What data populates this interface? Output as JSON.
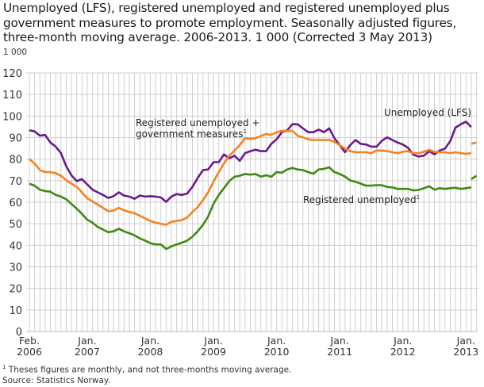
{
  "chart_data": {
    "type": "line",
    "title": "Unemployed (LFS), registered unemployed and registered unemployed plus government measures to promote employment. Seasonally adjusted figures, three-month moving average. 2006-2013. 1 000 (Corrected 3 May 2013)",
    "ylabel": "1 000",
    "xlabel": "",
    "ylim": [
      0,
      120
    ],
    "yticks": [
      "0",
      "10",
      "20",
      "30",
      "40",
      "50",
      "60",
      "70",
      "80",
      "90",
      "100",
      "110",
      "120"
    ],
    "x_start": "2006-02",
    "x_end": "2013-03",
    "xtick_labels": [
      {
        "month": "2006-02",
        "line1": "Feb.",
        "line2": "2006"
      },
      {
        "month": "2007-01",
        "line1": "Jan.",
        "line2": "2007"
      },
      {
        "month": "2008-01",
        "line1": "Jan.",
        "line2": "2008"
      },
      {
        "month": "2009-01",
        "line1": "Jan.",
        "line2": "2009"
      },
      {
        "month": "2010-01",
        "line1": "Jan.",
        "line2": "2010"
      },
      {
        "month": "2011-01",
        "line1": "Jan.",
        "line2": "2011"
      },
      {
        "month": "2012-01",
        "line1": "Jan.",
        "line2": "2012"
      },
      {
        "month": "2013-01",
        "line1": "Jan.",
        "line2": "2013"
      }
    ],
    "grid": true,
    "series": [
      {
        "name": "Unemployed (LFS)",
        "color": "#6b1a8f",
        "start": "2006-02",
        "values": [
          93.4,
          92.9,
          90.9,
          91.2,
          87.7,
          85.8,
          82.8,
          76.8,
          72.5,
          69.8,
          70.7,
          68.3,
          65.8,
          64.6,
          63.4,
          62.0,
          62.8,
          64.6,
          63.1,
          62.6,
          61.6,
          63.1,
          62.6,
          62.8,
          62.6,
          62.2,
          60.2,
          62.6,
          63.8,
          63.4,
          64.0,
          67.1,
          71.3,
          74.9,
          75.2,
          78.6,
          78.6,
          82.2,
          80.4,
          81.6,
          79.2,
          82.8,
          83.7,
          84.4,
          83.7,
          83.7,
          87.1,
          89.2,
          92.5,
          93.4,
          96.2,
          96.2,
          94.3,
          92.5,
          92.5,
          93.7,
          92.5,
          94.3,
          89.7,
          86.5,
          83.2,
          86.5,
          88.9,
          87.1,
          86.8,
          85.8,
          85.8,
          88.5,
          90.1,
          88.9,
          87.7,
          86.8,
          85.2,
          82.0,
          81.2,
          81.6,
          83.7,
          82.2,
          84.0,
          84.9,
          88.3,
          94.6,
          96.2,
          97.4,
          94.9
        ]
      },
      {
        "name": "Registered unemployed + government measures",
        "name_line1": "Registered unemployed +",
        "name_line2": "government measures",
        "footnote_mark": "1",
        "color": "#f58220",
        "start": "2006-02",
        "values": [
          80.0,
          78.0,
          74.9,
          74.0,
          74.0,
          73.5,
          72.3,
          70.3,
          68.6,
          67.1,
          64.6,
          61.8,
          60.4,
          58.9,
          57.4,
          55.8,
          56.2,
          57.4,
          56.2,
          55.5,
          54.9,
          53.7,
          52.5,
          51.3,
          50.5,
          50.0,
          49.5,
          50.9,
          51.3,
          51.7,
          52.9,
          55.5,
          57.7,
          61.0,
          64.6,
          69.5,
          74.0,
          78.0,
          81.6,
          84.0,
          86.5,
          89.7,
          89.5,
          89.7,
          90.7,
          91.7,
          91.3,
          92.5,
          93.1,
          93.1,
          93.1,
          90.9,
          90.1,
          89.2,
          88.9,
          88.9,
          88.9,
          88.9,
          88.0,
          86.5,
          84.9,
          83.7,
          83.2,
          83.2,
          83.2,
          82.8,
          84.0,
          84.0,
          83.7,
          83.2,
          82.8,
          83.4,
          83.7,
          82.8,
          82.8,
          83.4,
          84.3,
          83.4,
          83.2,
          83.2,
          82.8,
          83.2,
          82.8,
          82.5,
          82.8
        ],
        "monthly": {
          "start": "2013-02",
          "values": [
            87.1,
            87.7
          ]
        }
      },
      {
        "name": "Registered unemployed",
        "footnote_mark": "1",
        "color": "#3f8a10",
        "start": "2006-02",
        "values": [
          68.6,
          67.7,
          65.8,
          65.2,
          64.9,
          63.4,
          62.6,
          61.4,
          59.2,
          57.0,
          54.6,
          51.9,
          50.5,
          48.5,
          47.3,
          46.1,
          46.5,
          47.7,
          46.5,
          45.6,
          44.6,
          43.2,
          42.2,
          41.0,
          40.4,
          40.4,
          38.3,
          39.5,
          40.4,
          41.2,
          42.2,
          44.0,
          46.5,
          49.5,
          53.4,
          59.2,
          63.4,
          66.5,
          69.8,
          71.8,
          72.3,
          73.1,
          72.8,
          73.1,
          71.9,
          72.5,
          71.8,
          74.0,
          73.7,
          75.2,
          75.9,
          75.2,
          74.9,
          74.0,
          73.2,
          75.2,
          75.5,
          76.2,
          74.0,
          73.1,
          71.9,
          70.1,
          69.5,
          68.6,
          67.7,
          67.7,
          67.9,
          67.9,
          67.1,
          66.9,
          66.2,
          66.2,
          66.2,
          65.5,
          65.7,
          66.5,
          67.4,
          65.8,
          66.5,
          66.2,
          66.5,
          66.7,
          66.2,
          66.5,
          66.9
        ],
        "monthly": {
          "start": "2013-02",
          "values": [
            70.7,
            72.3
          ]
        }
      }
    ],
    "gridline_color": "#cfcfcf"
  },
  "footnote": {
    "mark": "1",
    "text": " Theses figures are monthly, and not three-months moving average."
  },
  "source": "Source: Statistics Norway."
}
